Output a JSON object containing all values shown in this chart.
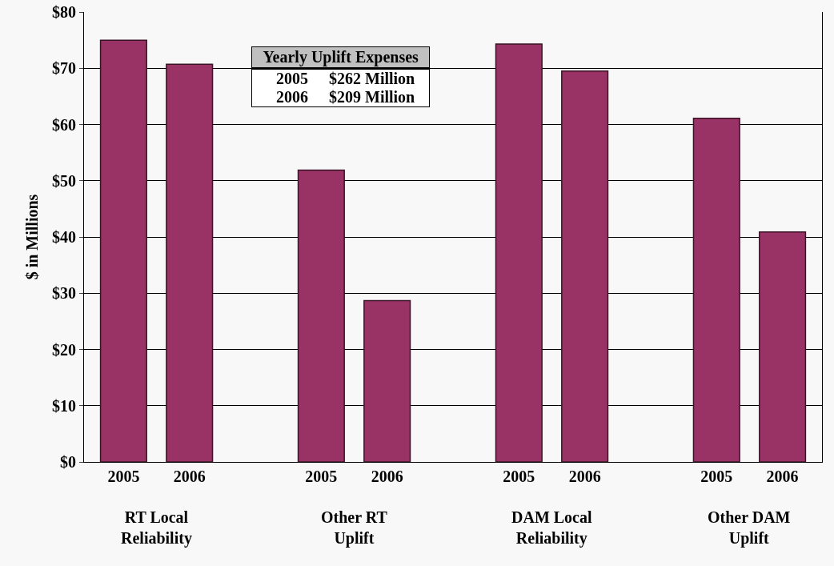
{
  "chart_data": {
    "type": "bar",
    "ylabel": "$ in Millions",
    "categories": [
      "RT Local Reliability",
      "Other RT Uplift",
      "DAM Local Reliability",
      "Other DAM Uplift"
    ],
    "series": [
      {
        "name": "2005",
        "color": "#993366",
        "values": [
          75.0,
          51.9,
          74.3,
          61.1
        ]
      },
      {
        "name": "2006",
        "color": "#993366",
        "values": [
          70.7,
          28.7,
          69.5,
          40.9
        ]
      }
    ],
    "ylim": [
      0,
      80
    ],
    "yticks": [
      {
        "value": 0,
        "label": "$0"
      },
      {
        "value": 10,
        "label": "$10"
      },
      {
        "value": 20,
        "label": "$20"
      },
      {
        "value": 30,
        "label": "$30"
      },
      {
        "value": 40,
        "label": "$40"
      },
      {
        "value": 50,
        "label": "$50"
      },
      {
        "value": 60,
        "label": "$60"
      },
      {
        "value": 70,
        "label": "$70"
      },
      {
        "value": 80,
        "label": "$80"
      }
    ],
    "grid": "y",
    "legend": false,
    "annotations": [
      "Yearly Uplift Expenses",
      "2005",
      "$262 Million",
      "2006",
      "$209 Million"
    ]
  }
}
